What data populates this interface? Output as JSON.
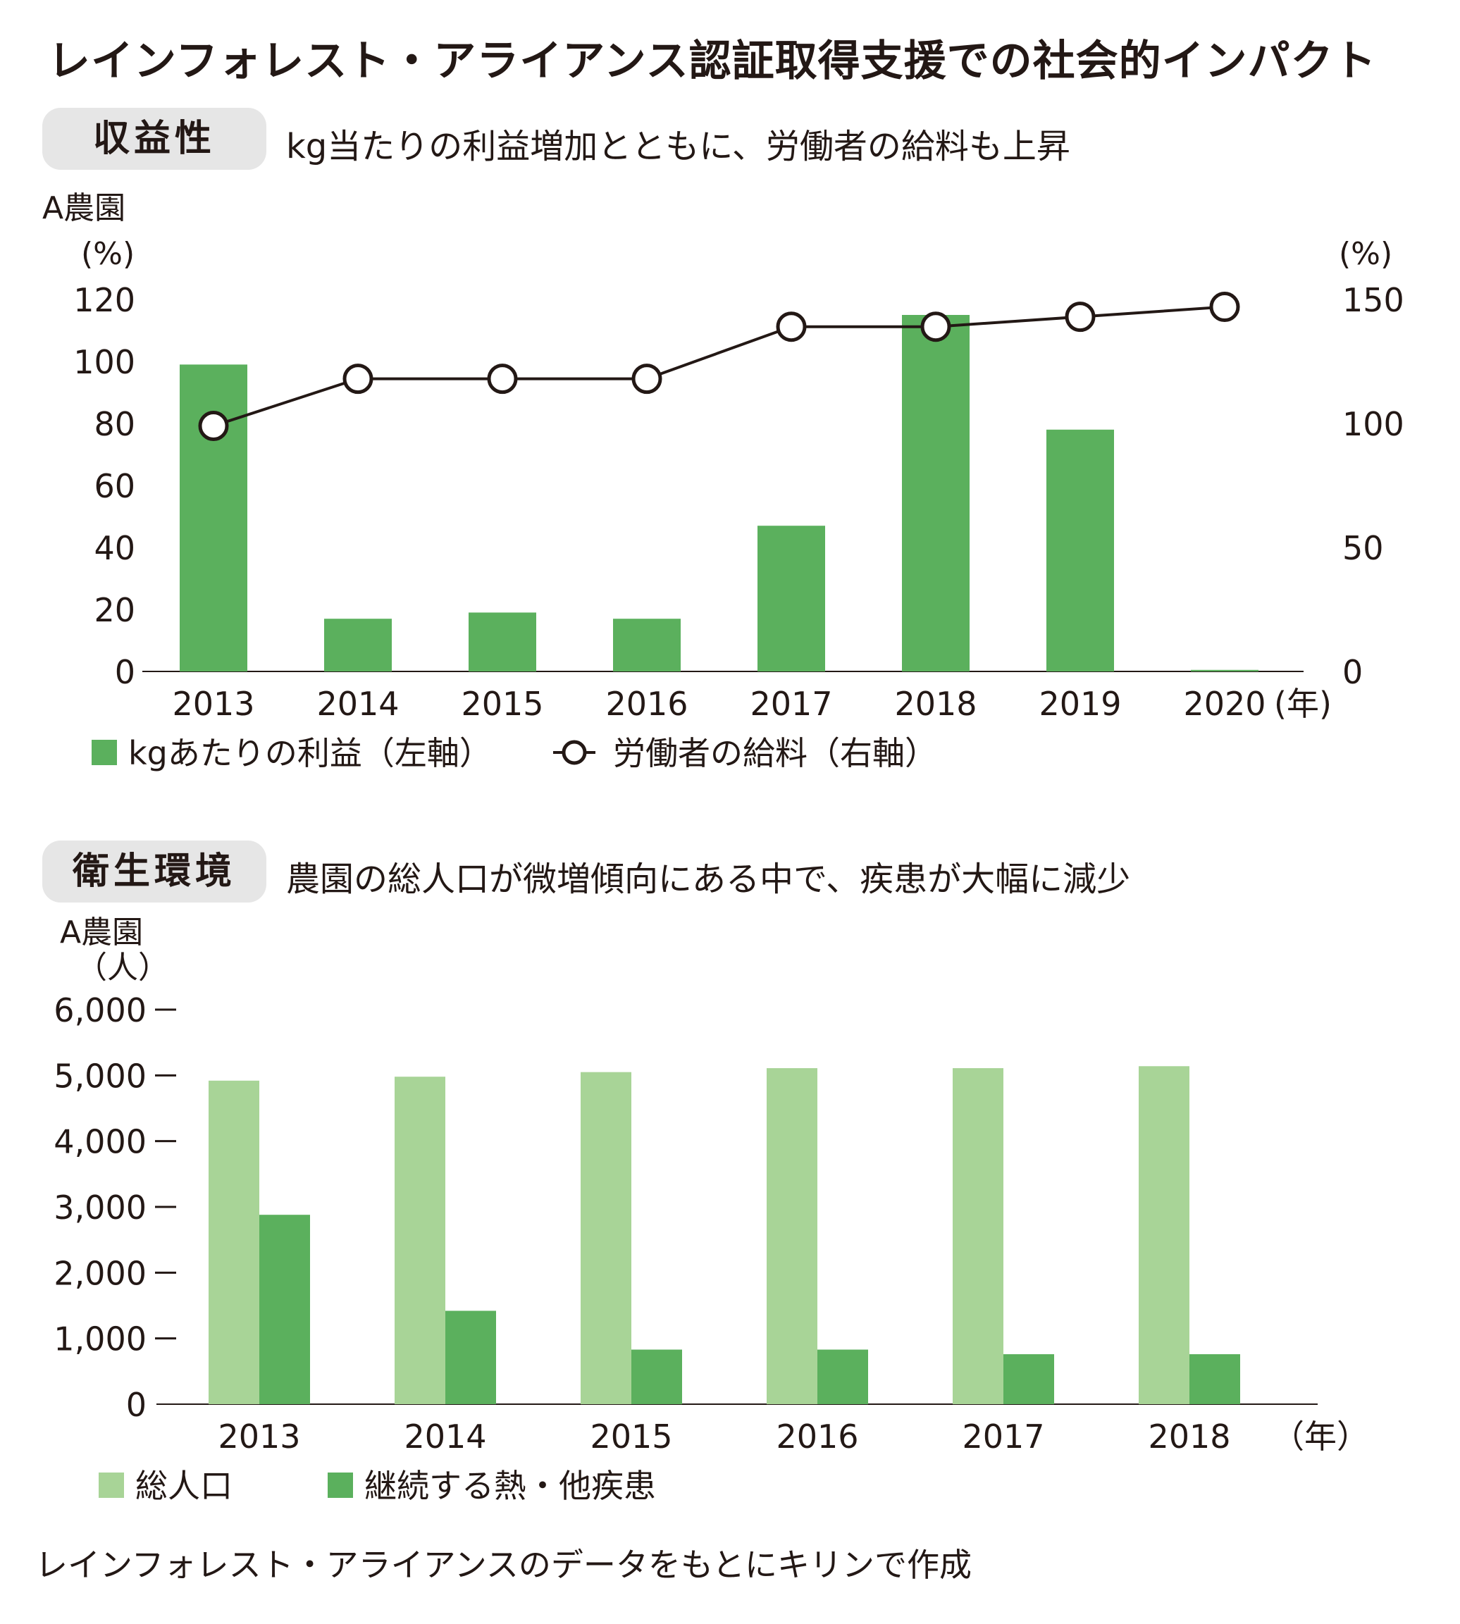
{
  "title": "レインフォレスト・アライアンス認証取得支援での社会的インパクト",
  "section1": {
    "tag": "収益性",
    "subtitle": "kg当たりの利益増加とともに、労働者の給料も上昇"
  },
  "section2": {
    "tag": "衛生環境",
    "subtitle": "農園の総人口が微増傾向にある中で、疾患が大幅に減少"
  },
  "source": "レインフォレスト・アライアンスのデータをもとにキリンで作成",
  "colors": {
    "bar_dark": "#5bb05d",
    "bar_light": "#a8d497",
    "pill_bg": "#e6e6e6",
    "text": "#231815"
  },
  "chart_data": [
    {
      "type": "bar",
      "farm_label": "A農園",
      "left_unit": "(%)",
      "right_unit": "(%)",
      "x_unit": "(年)",
      "categories": [
        "2013",
        "2014",
        "2015",
        "2016",
        "2017",
        "2018",
        "2019",
        "2020"
      ],
      "ylim": [
        0,
        120
      ],
      "yticks": [
        "0",
        "20",
        "40",
        "60",
        "80",
        "100",
        "120"
      ],
      "y2lim": [
        0,
        150
      ],
      "y2ticks": [
        "0",
        "50",
        "100",
        "150"
      ],
      "series": [
        {
          "name": "kgあたりの利益（左軸）",
          "type": "bar",
          "axis": "left",
          "values": [
            99,
            17,
            19,
            17,
            47,
            115,
            78,
            0.5
          ]
        },
        {
          "name": "労働者の給料（右軸）",
          "type": "line",
          "axis": "right",
          "values": [
            99,
            118,
            118,
            118,
            139,
            139,
            143,
            147
          ]
        }
      ]
    },
    {
      "type": "bar",
      "farm_label": "A農園",
      "y_unit": "（人）",
      "x_unit": "（年）",
      "categories": [
        "2013",
        "2014",
        "2015",
        "2016",
        "2017",
        "2018"
      ],
      "ylim": [
        0,
        6000
      ],
      "yticks": [
        "0",
        "1,000",
        "2,000",
        "3,000",
        "4,000",
        "5,000",
        "6,000"
      ],
      "series": [
        {
          "name": "総人口",
          "values": [
            4920,
            4980,
            5050,
            5110,
            5110,
            5140
          ]
        },
        {
          "name": "継続する熱・他疾患",
          "values": [
            2880,
            1420,
            830,
            830,
            760,
            760
          ]
        }
      ]
    }
  ]
}
